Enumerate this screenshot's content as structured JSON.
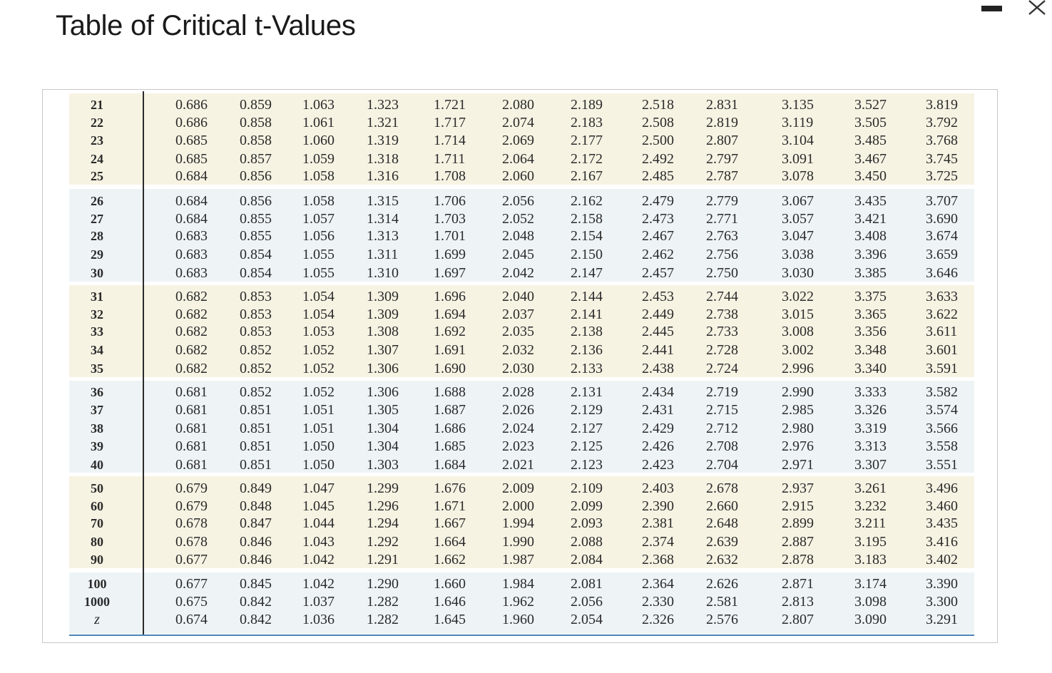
{
  "title": "Table of Critical t-Values",
  "window": {
    "minimize_icon": "minimize-icon",
    "close_icon": "close-icon"
  },
  "colors": {
    "beige_band": "#f7f3e3",
    "blue_band": "#eef4f6",
    "rule": "#4a85b8"
  },
  "table": {
    "groups": [
      {
        "shade": "beige",
        "rows": [
          {
            "df": "21",
            "values": [
              "0.686",
              "0.859",
              "1.063",
              "1.323",
              "1.721",
              "2.080",
              "2.189",
              "2.518",
              "2.831",
              "3.135",
              "3.527",
              "3.819"
            ]
          },
          {
            "df": "22",
            "values": [
              "0.686",
              "0.858",
              "1.061",
              "1.321",
              "1.717",
              "2.074",
              "2.183",
              "2.508",
              "2.819",
              "3.119",
              "3.505",
              "3.792"
            ]
          },
          {
            "df": "23",
            "values": [
              "0.685",
              "0.858",
              "1.060",
              "1.319",
              "1.714",
              "2.069",
              "2.177",
              "2.500",
              "2.807",
              "3.104",
              "3.485",
              "3.768"
            ]
          },
          {
            "df": "24",
            "values": [
              "0.685",
              "0.857",
              "1.059",
              "1.318",
              "1.711",
              "2.064",
              "2.172",
              "2.492",
              "2.797",
              "3.091",
              "3.467",
              "3.745"
            ]
          },
          {
            "df": "25",
            "values": [
              "0.684",
              "0.856",
              "1.058",
              "1.316",
              "1.708",
              "2.060",
              "2.167",
              "2.485",
              "2.787",
              "3.078",
              "3.450",
              "3.725"
            ]
          }
        ]
      },
      {
        "shade": "blue",
        "rows": [
          {
            "df": "26",
            "values": [
              "0.684",
              "0.856",
              "1.058",
              "1.315",
              "1.706",
              "2.056",
              "2.162",
              "2.479",
              "2.779",
              "3.067",
              "3.435",
              "3.707"
            ]
          },
          {
            "df": "27",
            "values": [
              "0.684",
              "0.855",
              "1.057",
              "1.314",
              "1.703",
              "2.052",
              "2.158",
              "2.473",
              "2.771",
              "3.057",
              "3.421",
              "3.690"
            ]
          },
          {
            "df": "28",
            "values": [
              "0.683",
              "0.855",
              "1.056",
              "1.313",
              "1.701",
              "2.048",
              "2.154",
              "2.467",
              "2.763",
              "3.047",
              "3.408",
              "3.674"
            ]
          },
          {
            "df": "29",
            "values": [
              "0.683",
              "0.854",
              "1.055",
              "1.311",
              "1.699",
              "2.045",
              "2.150",
              "2.462",
              "2.756",
              "3.038",
              "3.396",
              "3.659"
            ]
          },
          {
            "df": "30",
            "values": [
              "0.683",
              "0.854",
              "1.055",
              "1.310",
              "1.697",
              "2.042",
              "2.147",
              "2.457",
              "2.750",
              "3.030",
              "3.385",
              "3.646"
            ]
          }
        ]
      },
      {
        "shade": "beige",
        "rows": [
          {
            "df": "31",
            "values": [
              "0.682",
              "0.853",
              "1.054",
              "1.309",
              "1.696",
              "2.040",
              "2.144",
              "2.453",
              "2.744",
              "3.022",
              "3.375",
              "3.633"
            ]
          },
          {
            "df": "32",
            "values": [
              "0.682",
              "0.853",
              "1.054",
              "1.309",
              "1.694",
              "2.037",
              "2.141",
              "2.449",
              "2.738",
              "3.015",
              "3.365",
              "3.622"
            ]
          },
          {
            "df": "33",
            "values": [
              "0.682",
              "0.853",
              "1.053",
              "1.308",
              "1.692",
              "2.035",
              "2.138",
              "2.445",
              "2.733",
              "3.008",
              "3.356",
              "3.611"
            ]
          },
          {
            "df": "34",
            "values": [
              "0.682",
              "0.852",
              "1.052",
              "1.307",
              "1.691",
              "2.032",
              "2.136",
              "2.441",
              "2.728",
              "3.002",
              "3.348",
              "3.601"
            ]
          },
          {
            "df": "35",
            "values": [
              "0.682",
              "0.852",
              "1.052",
              "1.306",
              "1.690",
              "2.030",
              "2.133",
              "2.438",
              "2.724",
              "2.996",
              "3.340",
              "3.591"
            ]
          }
        ]
      },
      {
        "shade": "blue",
        "rows": [
          {
            "df": "36",
            "values": [
              "0.681",
              "0.852",
              "1.052",
              "1.306",
              "1.688",
              "2.028",
              "2.131",
              "2.434",
              "2.719",
              "2.990",
              "3.333",
              "3.582"
            ]
          },
          {
            "df": "37",
            "values": [
              "0.681",
              "0.851",
              "1.051",
              "1.305",
              "1.687",
              "2.026",
              "2.129",
              "2.431",
              "2.715",
              "2.985",
              "3.326",
              "3.574"
            ]
          },
          {
            "df": "38",
            "values": [
              "0.681",
              "0.851",
              "1.051",
              "1.304",
              "1.686",
              "2.024",
              "2.127",
              "2.429",
              "2.712",
              "2.980",
              "3.319",
              "3.566"
            ]
          },
          {
            "df": "39",
            "values": [
              "0.681",
              "0.851",
              "1.050",
              "1.304",
              "1.685",
              "2.023",
              "2.125",
              "2.426",
              "2.708",
              "2.976",
              "3.313",
              "3.558"
            ]
          },
          {
            "df": "40",
            "values": [
              "0.681",
              "0.851",
              "1.050",
              "1.303",
              "1.684",
              "2.021",
              "2.123",
              "2.423",
              "2.704",
              "2.971",
              "3.307",
              "3.551"
            ]
          }
        ]
      },
      {
        "shade": "beige",
        "rows": [
          {
            "df": "50",
            "values": [
              "0.679",
              "0.849",
              "1.047",
              "1.299",
              "1.676",
              "2.009",
              "2.109",
              "2.403",
              "2.678",
              "2.937",
              "3.261",
              "3.496"
            ]
          },
          {
            "df": "60",
            "values": [
              "0.679",
              "0.848",
              "1.045",
              "1.296",
              "1.671",
              "2.000",
              "2.099",
              "2.390",
              "2.660",
              "2.915",
              "3.232",
              "3.460"
            ]
          },
          {
            "df": "70",
            "values": [
              "0.678",
              "0.847",
              "1.044",
              "1.294",
              "1.667",
              "1.994",
              "2.093",
              "2.381",
              "2.648",
              "2.899",
              "3.211",
              "3.435"
            ]
          },
          {
            "df": "80",
            "values": [
              "0.678",
              "0.846",
              "1.043",
              "1.292",
              "1.664",
              "1.990",
              "2.088",
              "2.374",
              "2.639",
              "2.887",
              "3.195",
              "3.416"
            ]
          },
          {
            "df": "90",
            "values": [
              "0.677",
              "0.846",
              "1.042",
              "1.291",
              "1.662",
              "1.987",
              "2.084",
              "2.368",
              "2.632",
              "2.878",
              "3.183",
              "3.402"
            ]
          }
        ]
      },
      {
        "shade": "blue",
        "rows": [
          {
            "df": "100",
            "values": [
              "0.677",
              "0.845",
              "1.042",
              "1.290",
              "1.660",
              "1.984",
              "2.081",
              "2.364",
              "2.626",
              "2.871",
              "3.174",
              "3.390"
            ]
          },
          {
            "df": "1000",
            "values": [
              "0.675",
              "0.842",
              "1.037",
              "1.282",
              "1.646",
              "1.962",
              "2.056",
              "2.330",
              "2.581",
              "2.813",
              "3.098",
              "3.300"
            ]
          },
          {
            "df": "z",
            "values": [
              "0.674",
              "0.842",
              "1.036",
              "1.282",
              "1.645",
              "1.960",
              "2.054",
              "2.326",
              "2.576",
              "2.807",
              "3.090",
              "3.291"
            ]
          }
        ]
      }
    ]
  }
}
